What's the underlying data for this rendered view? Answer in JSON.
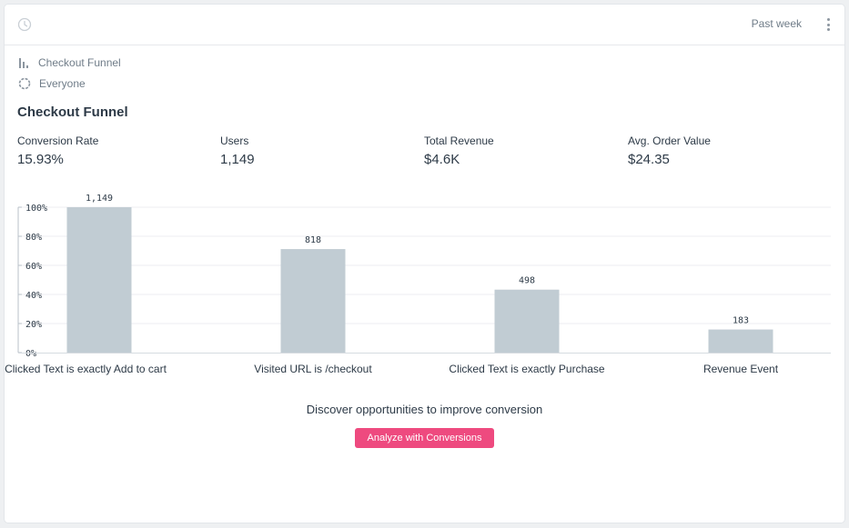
{
  "header": {
    "range_label": "Past week",
    "clock_icon": "clock-icon",
    "menu_icon": "more-vertical-icon"
  },
  "meta": {
    "report_name": "Checkout Funnel",
    "report_icon": "bar-chart-icon",
    "segment": "Everyone",
    "segment_icon": "segment-circle-icon"
  },
  "title": "Checkout Funnel",
  "metrics": [
    {
      "label": "Conversion Rate",
      "value": "15.93%"
    },
    {
      "label": "Users",
      "value": "1,149"
    },
    {
      "label": "Total Revenue",
      "value": "$4.6K"
    },
    {
      "label": "Avg. Order Value",
      "value": "$24.35"
    }
  ],
  "chart_data": {
    "type": "bar",
    "categories": [
      "Clicked Text is exactly Add to cart",
      "Visited URL is /checkout",
      "Clicked Text is exactly Purchase",
      "Revenue Event"
    ],
    "values": [
      100,
      71.2,
      43.3,
      15.9
    ],
    "value_labels": [
      "1,149",
      "818",
      "498",
      "183"
    ],
    "y_ticks": [
      "100%",
      "80%",
      "60%",
      "40%",
      "20%",
      "0%"
    ],
    "ylim": [
      0,
      100
    ],
    "grid": true,
    "bar_color": "#c1ccd3"
  },
  "cta": {
    "text": "Discover opportunities to improve conversion",
    "button_label": "Analyze with Conversions",
    "button_color": "#ee4a7f"
  }
}
